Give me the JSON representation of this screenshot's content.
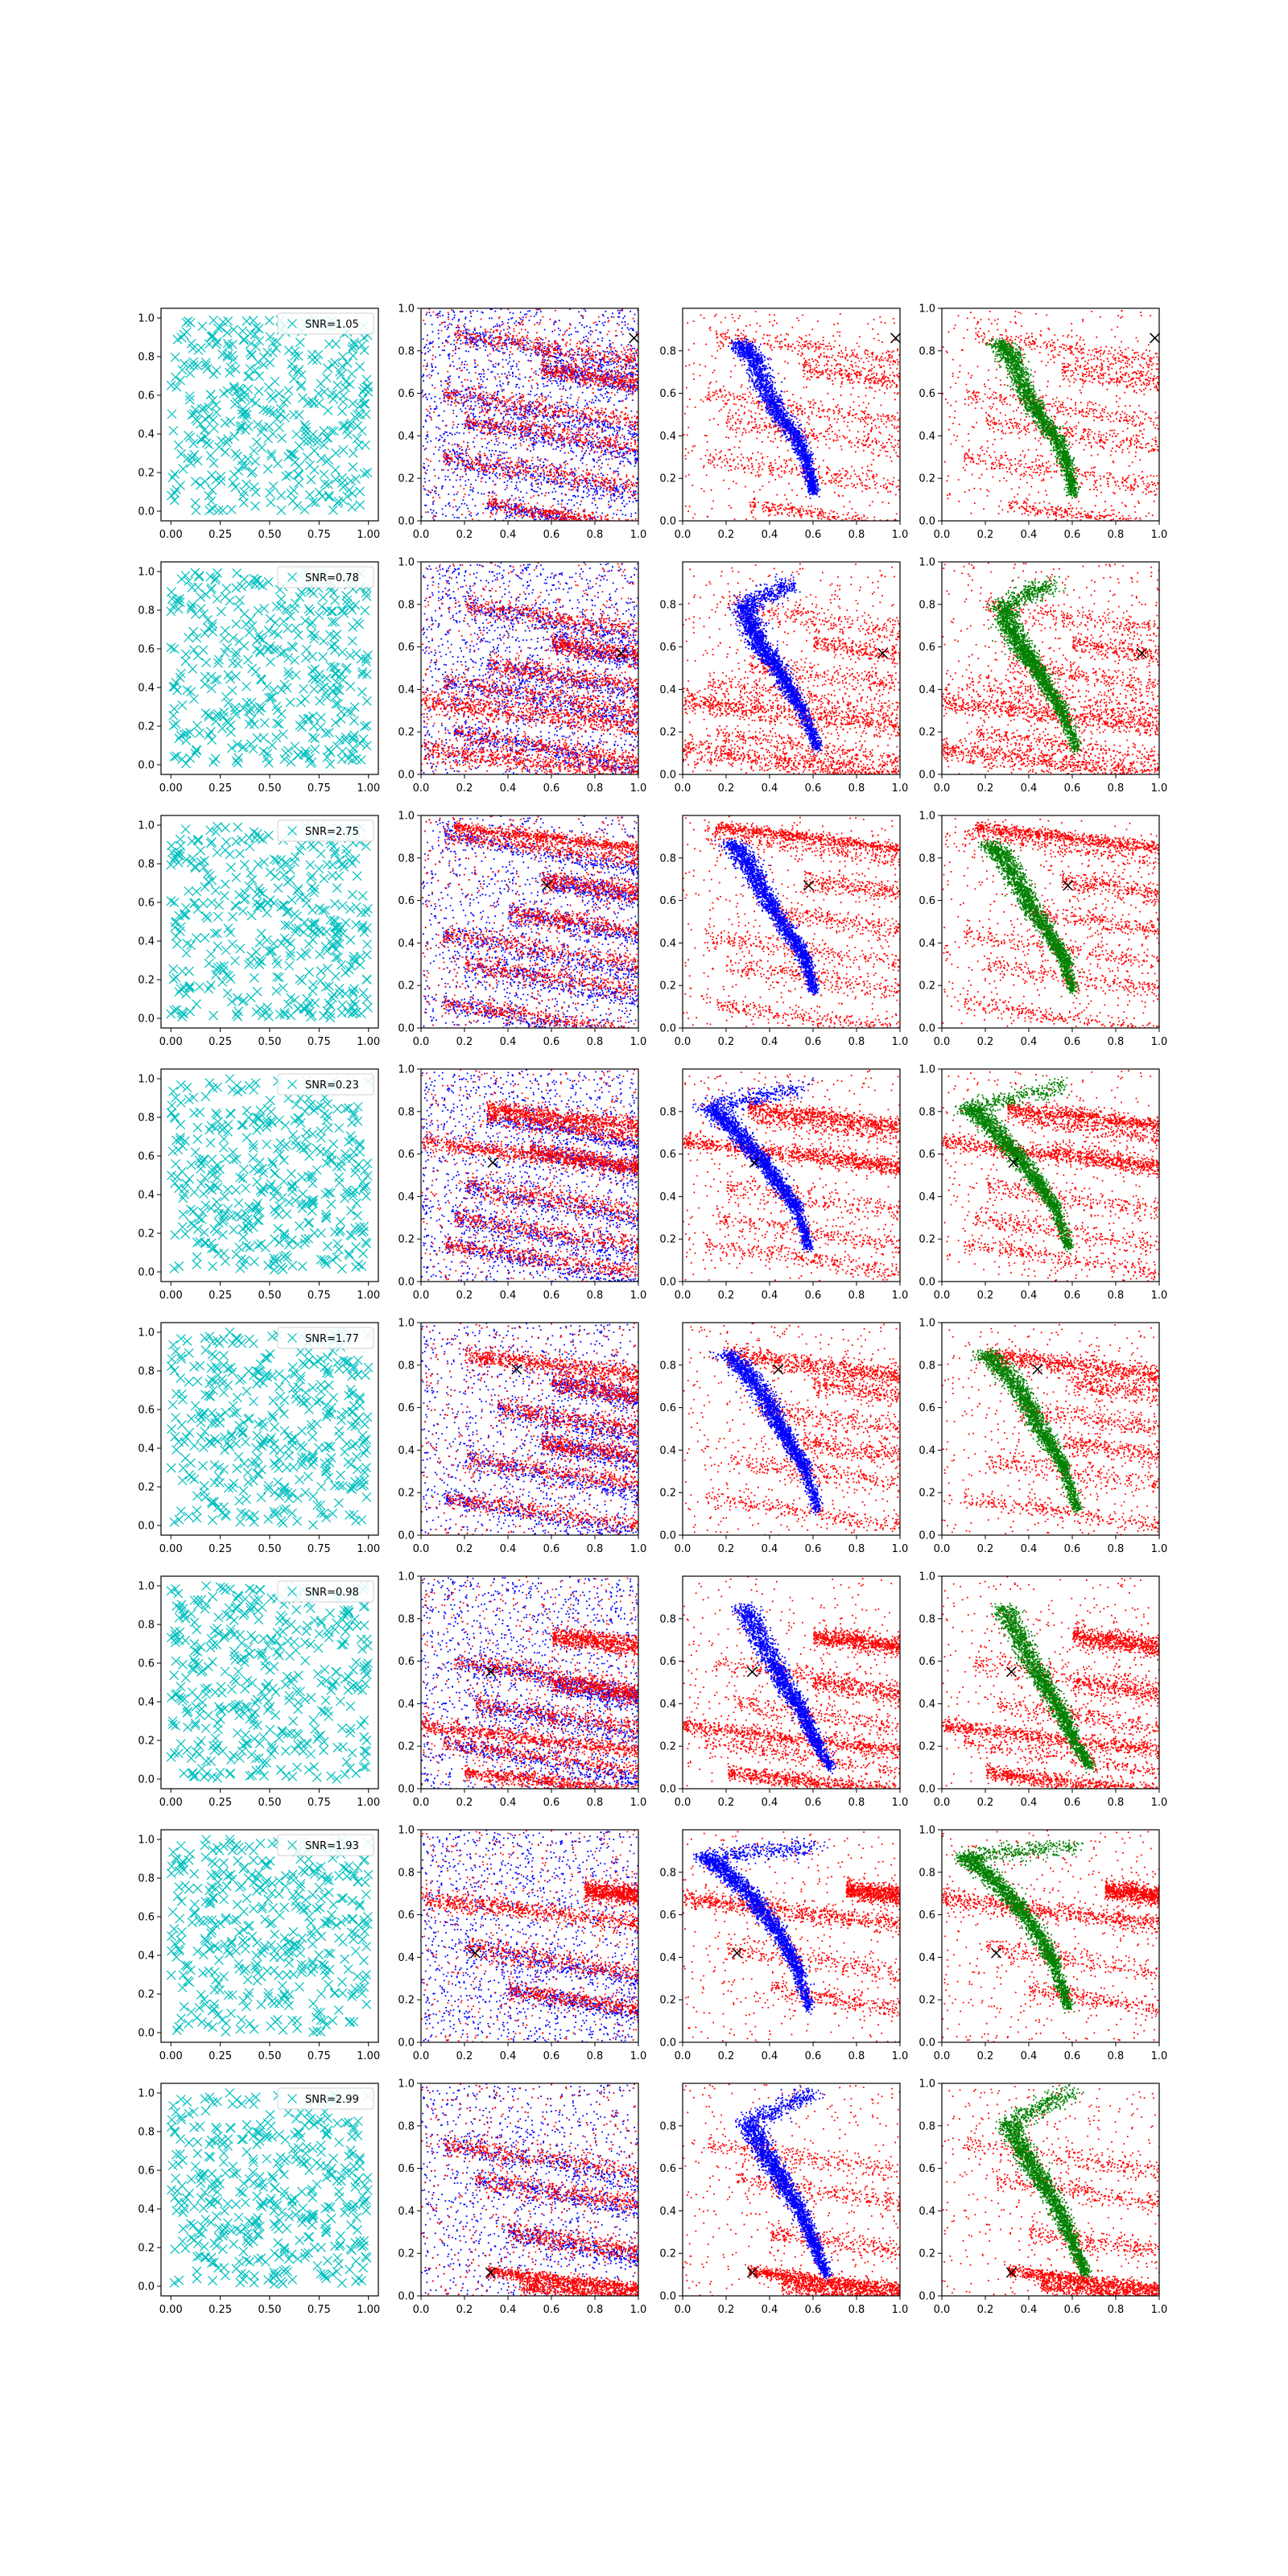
{
  "figure": {
    "layout": "8 rows x 4 columns grid of scatter subplots",
    "colors": {
      "noise_marker": "#00bfbf",
      "points_primary": "#0000ff",
      "points_secondary": "#ff0000",
      "points_tertiary": "#008000",
      "target_marker": "#000000"
    }
  },
  "chart_data": {
    "type": "scatter",
    "columns": [
      {
        "axis": {
          "xlim": [
            -0.05,
            1.05
          ],
          "ylim": [
            -0.05,
            1.05
          ],
          "xticks": [
            "0.00",
            "0.25",
            "0.50",
            "0.75",
            "1.00"
          ],
          "yticks": [
            "0.0",
            "0.2",
            "0.4",
            "0.6",
            "0.8",
            "1.0"
          ]
        },
        "series": [
          {
            "marker": "x",
            "color": "#00bfbf"
          }
        ],
        "legend": "upper right"
      },
      {
        "axis": {
          "xlim": [
            0,
            1
          ],
          "ylim": [
            0,
            1
          ],
          "xticks": [
            "0.0",
            "0.2",
            "0.4",
            "0.6",
            "0.8",
            "1.0"
          ],
          "yticks": [
            "0.0",
            "0.2",
            "0.4",
            "0.6",
            "0.8",
            "1.0"
          ]
        },
        "series": [
          {
            "color": "#0000ff"
          },
          {
            "color": "#ff0000"
          }
        ]
      },
      {
        "axis": {
          "xlim": [
            0,
            1
          ],
          "ylim": [
            0,
            1
          ],
          "xticks": [
            "0.0",
            "0.2",
            "0.4",
            "0.6",
            "0.8",
            "1.0"
          ],
          "yticks": [
            "0.0",
            "0.2",
            "0.4",
            "0.6",
            "0.8"
          ]
        },
        "series": [
          {
            "color": "#ff0000"
          },
          {
            "color": "#0000ff"
          }
        ]
      },
      {
        "axis": {
          "xlim": [
            0,
            1
          ],
          "ylim": [
            0,
            1
          ],
          "xticks": [
            "0.0",
            "0.2",
            "0.4",
            "0.6",
            "0.8",
            "1.0"
          ],
          "yticks": [
            "0.0",
            "0.2",
            "0.4",
            "0.6",
            "0.8",
            "1.0"
          ]
        },
        "series": [
          {
            "color": "#ff0000"
          },
          {
            "color": "#008000"
          }
        ]
      }
    ],
    "rows": [
      {
        "legend_label": "SNR=1.05",
        "target": [
          0.98,
          0.86
        ],
        "curve": [
          [
            0.26,
            0.84
          ],
          [
            0.33,
            0.76
          ],
          [
            0.38,
            0.62
          ],
          [
            0.44,
            0.5
          ],
          [
            0.52,
            0.4
          ],
          [
            0.57,
            0.28
          ],
          [
            0.6,
            0.13
          ]
        ],
        "bands": [
          [
            0.15,
            0.88,
            0.05
          ],
          [
            0.55,
            0.72,
            0.05
          ],
          [
            0.1,
            0.6,
            0.05
          ],
          [
            0.2,
            0.47,
            0.05
          ],
          [
            0.1,
            0.3,
            0.05
          ],
          [
            0.3,
            0.08,
            0.03
          ]
        ],
        "dense_bands": [],
        "spur": null
      },
      {
        "legend_label": "SNR=0.78",
        "target": [
          0.92,
          0.57
        ],
        "curve": [
          [
            0.28,
            0.8
          ],
          [
            0.31,
            0.7
          ],
          [
            0.36,
            0.6
          ],
          [
            0.42,
            0.52
          ],
          [
            0.48,
            0.42
          ],
          [
            0.55,
            0.3
          ],
          [
            0.62,
            0.12
          ]
        ],
        "bands": [
          [
            0.2,
            0.8,
            0.05
          ],
          [
            0.6,
            0.62,
            0.05
          ],
          [
            0.3,
            0.52,
            0.05
          ],
          [
            0.1,
            0.44,
            0.05
          ],
          [
            0.15,
            0.2,
            0.04
          ]
        ],
        "dense_bands": [
          [
            0.0,
            0.35,
            0.06
          ],
          [
            0.0,
            0.12,
            0.06
          ]
        ],
        "spur": [
          0.5,
          0.9
        ]
      },
      {
        "legend_label": "SNR=2.75",
        "target": [
          0.58,
          0.67
        ],
        "curve": [
          [
            0.22,
            0.87
          ],
          [
            0.3,
            0.78
          ],
          [
            0.36,
            0.66
          ],
          [
            0.42,
            0.55
          ],
          [
            0.5,
            0.43
          ],
          [
            0.56,
            0.33
          ],
          [
            0.6,
            0.18
          ]
        ],
        "bands": [
          [
            0.1,
            0.92,
            0.04
          ],
          [
            0.55,
            0.7,
            0.05
          ],
          [
            0.4,
            0.55,
            0.05
          ],
          [
            0.1,
            0.44,
            0.05
          ],
          [
            0.2,
            0.3,
            0.05
          ],
          [
            0.1,
            0.12,
            0.04
          ]
        ],
        "dense_bands": [
          [
            0.15,
            0.95,
            0.03
          ]
        ],
        "spur": null
      },
      {
        "legend_label": "SNR=0.23",
        "target": [
          0.33,
          0.56
        ],
        "curve": [
          [
            0.12,
            0.82
          ],
          [
            0.22,
            0.74
          ],
          [
            0.3,
            0.64
          ],
          [
            0.38,
            0.55
          ],
          [
            0.45,
            0.45
          ],
          [
            0.52,
            0.35
          ],
          [
            0.58,
            0.16
          ]
        ],
        "bands": [
          [
            0.3,
            0.78,
            0.04
          ],
          [
            0.5,
            0.62,
            0.05
          ],
          [
            0.2,
            0.45,
            0.05
          ],
          [
            0.15,
            0.3,
            0.05
          ],
          [
            0.1,
            0.18,
            0.04
          ]
        ],
        "dense_bands": [
          [
            0.3,
            0.82,
            0.04
          ],
          [
            0.0,
            0.66,
            0.04
          ]
        ],
        "spur": [
          0.55,
          0.92
        ]
      },
      {
        "legend_label": "SNR=1.77",
        "target": [
          0.44,
          0.78
        ],
        "curve": [
          [
            0.2,
            0.86
          ],
          [
            0.3,
            0.76
          ],
          [
            0.38,
            0.64
          ],
          [
            0.44,
            0.52
          ],
          [
            0.5,
            0.42
          ],
          [
            0.56,
            0.32
          ],
          [
            0.62,
            0.12
          ]
        ],
        "bands": [
          [
            0.6,
            0.72,
            0.05
          ],
          [
            0.35,
            0.6,
            0.05
          ],
          [
            0.55,
            0.44,
            0.05
          ],
          [
            0.2,
            0.36,
            0.05
          ],
          [
            0.1,
            0.18,
            0.04
          ]
        ],
        "dense_bands": [
          [
            0.2,
            0.85,
            0.05
          ]
        ],
        "spur": null
      },
      {
        "legend_label": "SNR=0.98",
        "target": [
          0.32,
          0.55
        ],
        "curve": [
          [
            0.28,
            0.86
          ],
          [
            0.35,
            0.72
          ],
          [
            0.42,
            0.58
          ],
          [
            0.48,
            0.47
          ],
          [
            0.55,
            0.36
          ],
          [
            0.6,
            0.24
          ],
          [
            0.68,
            0.1
          ]
        ],
        "bands": [
          [
            0.15,
            0.6,
            0.05
          ],
          [
            0.6,
            0.5,
            0.05
          ],
          [
            0.25,
            0.4,
            0.05
          ],
          [
            0.1,
            0.22,
            0.04
          ]
        ],
        "dense_bands": [
          [
            0.6,
            0.72,
            0.05
          ],
          [
            0.0,
            0.3,
            0.04
          ],
          [
            0.2,
            0.08,
            0.04
          ]
        ],
        "spur": null
      },
      {
        "legend_label": "SNR=1.93",
        "target": [
          0.25,
          0.42
        ],
        "curve": [
          [
            0.1,
            0.88
          ],
          [
            0.2,
            0.8
          ],
          [
            0.3,
            0.7
          ],
          [
            0.38,
            0.6
          ],
          [
            0.46,
            0.48
          ],
          [
            0.52,
            0.36
          ],
          [
            0.58,
            0.16
          ]
        ],
        "bands": [
          [
            0.2,
            0.45,
            0.05
          ],
          [
            0.4,
            0.25,
            0.04
          ]
        ],
        "dense_bands": [
          [
            0.75,
            0.72,
            0.05
          ],
          [
            0.0,
            0.68,
            0.05
          ]
        ],
        "spur": [
          0.6,
          0.92
        ]
      },
      {
        "legend_label": "SNR=2.99",
        "target": [
          0.32,
          0.11
        ],
        "curve": [
          [
            0.3,
            0.82
          ],
          [
            0.36,
            0.7
          ],
          [
            0.42,
            0.6
          ],
          [
            0.48,
            0.5
          ],
          [
            0.55,
            0.38
          ],
          [
            0.6,
            0.25
          ],
          [
            0.66,
            0.1
          ]
        ],
        "bands": [
          [
            0.25,
            0.55,
            0.05
          ],
          [
            0.4,
            0.3,
            0.05
          ],
          [
            0.1,
            0.72,
            0.05
          ]
        ],
        "dense_bands": [
          [
            0.3,
            0.12,
            0.03
          ],
          [
            0.45,
            0.06,
            0.05
          ]
        ],
        "spur": [
          0.6,
          0.96
        ]
      }
    ]
  }
}
